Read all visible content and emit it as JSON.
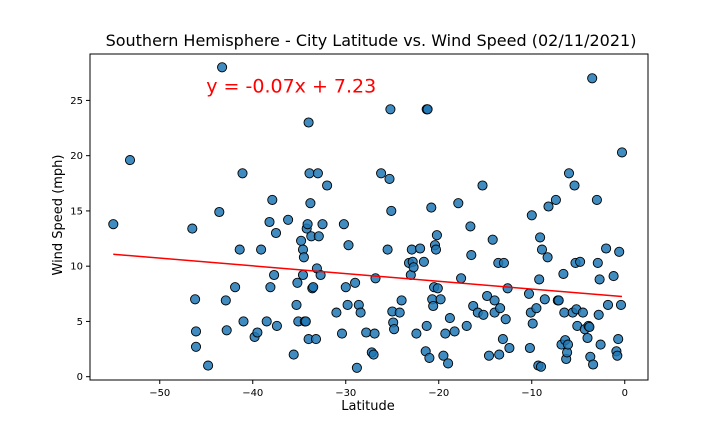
{
  "chart_data": {
    "type": "scatter",
    "title": "Southern Hemisphere - City Latitude vs. Wind Speed (02/11/2021)",
    "xlabel": "Latitude",
    "ylabel": "Wind Speed (mph)",
    "xlim": [
      -57.5,
      2.5
    ],
    "ylim": [
      -0.3,
      29.2
    ],
    "xticks": [
      -50,
      -40,
      -30,
      -20,
      -10,
      0
    ],
    "yticks": [
      0,
      5,
      10,
      15,
      20,
      25
    ],
    "grid": false,
    "marker_color": "#1f77b4",
    "marker_edge": "#000000",
    "regression": {
      "slope": -0.07,
      "intercept": 7.23,
      "color": "#ff0000",
      "x_range": [
        -55,
        -0.3
      ]
    },
    "annotation": {
      "text": "y = -0.07x + 7.23",
      "x": -45,
      "y": 26,
      "color": "#ff0000"
    },
    "points": [
      [
        -55,
        13.8
      ],
      [
        -53.2,
        19.6
      ],
      [
        -46.5,
        13.4
      ],
      [
        -46.2,
        7.0
      ],
      [
        -46.1,
        4.1
      ],
      [
        -46.1,
        2.7
      ],
      [
        -44.8,
        1.0
      ],
      [
        -43.6,
        14.9
      ],
      [
        -43.3,
        28.0
      ],
      [
        -42.9,
        6.9
      ],
      [
        -42.8,
        4.2
      ],
      [
        -41.9,
        8.1
      ],
      [
        -41.4,
        11.5
      ],
      [
        -41.1,
        18.4
      ],
      [
        -41.0,
        5.0
      ],
      [
        -39.8,
        3.6
      ],
      [
        -39.5,
        4.0
      ],
      [
        -39.1,
        11.5
      ],
      [
        -38.5,
        5.0
      ],
      [
        -38.2,
        14.0
      ],
      [
        -38.1,
        8.1
      ],
      [
        -37.9,
        16.0
      ],
      [
        -37.7,
        9.2
      ],
      [
        -37.5,
        13.0
      ],
      [
        -37.4,
        4.6
      ],
      [
        -36.2,
        14.2
      ],
      [
        -35.6,
        2.0
      ],
      [
        -35.3,
        6.5
      ],
      [
        -35.2,
        8.5
      ],
      [
        -35.1,
        5.0
      ],
      [
        -34.8,
        12.3
      ],
      [
        -34.6,
        9.2
      ],
      [
        -34.6,
        11.5
      ],
      [
        -34.5,
        10.8
      ],
      [
        -34.4,
        5.0
      ],
      [
        -34.3,
        5.0
      ],
      [
        -34.2,
        13.4
      ],
      [
        -34.1,
        13.8
      ],
      [
        -34.0,
        3.4
      ],
      [
        -34.0,
        23.0
      ],
      [
        -33.9,
        18.4
      ],
      [
        -33.8,
        15.7
      ],
      [
        -33.7,
        12.7
      ],
      [
        -33.6,
        8.0
      ],
      [
        -33.5,
        8.1
      ],
      [
        -33.2,
        3.4
      ],
      [
        -33.1,
        9.8
      ],
      [
        -33.0,
        18.4
      ],
      [
        -32.9,
        12.7
      ],
      [
        -32.7,
        9.2
      ],
      [
        -32.5,
        13.8
      ],
      [
        -32.0,
        17.3
      ],
      [
        -31.0,
        5.8
      ],
      [
        -30.4,
        3.9
      ],
      [
        -30.2,
        13.8
      ],
      [
        -30.0,
        8.1
      ],
      [
        -29.8,
        6.5
      ],
      [
        -29.7,
        11.9
      ],
      [
        -29.0,
        8.5
      ],
      [
        -28.8,
        0.8
      ],
      [
        -28.6,
        6.5
      ],
      [
        -28.4,
        5.8
      ],
      [
        -27.8,
        4.0
      ],
      [
        -27.2,
        2.2
      ],
      [
        -27.0,
        2.0
      ],
      [
        -26.9,
        3.9
      ],
      [
        -26.8,
        8.9
      ],
      [
        -26.2,
        18.4
      ],
      [
        -25.5,
        11.5
      ],
      [
        -25.3,
        17.9
      ],
      [
        -25.2,
        24.2
      ],
      [
        -25.1,
        15.0
      ],
      [
        -25.0,
        5.9
      ],
      [
        -24.9,
        4.9
      ],
      [
        -24.8,
        4.3
      ],
      [
        -24.2,
        5.8
      ],
      [
        -24.0,
        6.9
      ],
      [
        -23.2,
        10.3
      ],
      [
        -23.0,
        9.2
      ],
      [
        -22.9,
        11.5
      ],
      [
        -22.8,
        10.4
      ],
      [
        -22.7,
        9.9
      ],
      [
        -22.4,
        3.9
      ],
      [
        -22.0,
        11.6
      ],
      [
        -21.6,
        10.4
      ],
      [
        -21.4,
        2.3
      ],
      [
        -21.3,
        4.6
      ],
      [
        -21.3,
        24.2
      ],
      [
        -21.2,
        24.2
      ],
      [
        -21.0,
        1.7
      ],
      [
        -20.8,
        15.3
      ],
      [
        -20.7,
        7.0
      ],
      [
        -20.6,
        6.4
      ],
      [
        -20.5,
        8.1
      ],
      [
        -20.4,
        11.9
      ],
      [
        -20.3,
        11.5
      ],
      [
        -20.2,
        12.8
      ],
      [
        -20.1,
        8.0
      ],
      [
        -19.8,
        7.0
      ],
      [
        -19.5,
        1.9
      ],
      [
        -19.3,
        3.9
      ],
      [
        -19.0,
        1.2
      ],
      [
        -18.8,
        5.3
      ],
      [
        -18.3,
        4.1
      ],
      [
        -17.9,
        15.7
      ],
      [
        -17.6,
        8.9
      ],
      [
        -17.0,
        4.6
      ],
      [
        -16.6,
        13.6
      ],
      [
        -16.5,
        11.0
      ],
      [
        -16.3,
        6.4
      ],
      [
        -15.8,
        5.8
      ],
      [
        -15.3,
        17.3
      ],
      [
        -15.2,
        5.6
      ],
      [
        -14.8,
        7.3
      ],
      [
        -14.6,
        1.9
      ],
      [
        -14.2,
        12.4
      ],
      [
        -14.0,
        5.8
      ],
      [
        -14.0,
        6.9
      ],
      [
        -13.6,
        10.3
      ],
      [
        -13.5,
        2.0
      ],
      [
        -13.4,
        6.2
      ],
      [
        -13.1,
        3.4
      ],
      [
        -13.0,
        10.3
      ],
      [
        -12.8,
        5.2
      ],
      [
        -12.6,
        8.0
      ],
      [
        -12.4,
        2.6
      ],
      [
        -10.3,
        7.5
      ],
      [
        -10.2,
        2.6
      ],
      [
        -10.1,
        5.8
      ],
      [
        -10.0,
        14.6
      ],
      [
        -9.9,
        4.8
      ],
      [
        -9.5,
        6.2
      ],
      [
        -9.3,
        1.0
      ],
      [
        -9.2,
        8.8
      ],
      [
        -9.1,
        12.6
      ],
      [
        -9.0,
        0.9
      ],
      [
        -8.9,
        11.5
      ],
      [
        -8.6,
        7.0
      ],
      [
        -8.3,
        10.8
      ],
      [
        -8.2,
        15.4
      ],
      [
        -7.4,
        16.0
      ],
      [
        -7.2,
        6.9
      ],
      [
        -7.1,
        6.9
      ],
      [
        -6.8,
        2.9
      ],
      [
        -6.6,
        9.3
      ],
      [
        -6.5,
        5.8
      ],
      [
        -6.4,
        3.3
      ],
      [
        -6.3,
        1.6
      ],
      [
        -6.2,
        2.2
      ],
      [
        -6.1,
        2.9
      ],
      [
        -6.0,
        18.4
      ],
      [
        -5.6,
        5.8
      ],
      [
        -5.4,
        17.3
      ],
      [
        -5.3,
        10.3
      ],
      [
        -5.2,
        6.1
      ],
      [
        -5.1,
        4.6
      ],
      [
        -4.8,
        10.4
      ],
      [
        -4.5,
        5.8
      ],
      [
        -4.3,
        4.3
      ],
      [
        -4.0,
        3.5
      ],
      [
        -3.9,
        4.6
      ],
      [
        -3.8,
        4.5
      ],
      [
        -3.7,
        1.8
      ],
      [
        -3.5,
        27.0
      ],
      [
        -3.4,
        1.1
      ],
      [
        -3.0,
        16.0
      ],
      [
        -2.9,
        10.3
      ],
      [
        -2.8,
        5.6
      ],
      [
        -2.7,
        8.8
      ],
      [
        -2.6,
        2.9
      ],
      [
        -2.0,
        11.6
      ],
      [
        -1.8,
        6.5
      ],
      [
        -1.2,
        9.1
      ],
      [
        -0.9,
        2.3
      ],
      [
        -0.8,
        1.9
      ],
      [
        -0.7,
        3.4
      ],
      [
        -0.6,
        11.3
      ],
      [
        -0.4,
        6.5
      ],
      [
        -0.3,
        20.3
      ]
    ]
  }
}
